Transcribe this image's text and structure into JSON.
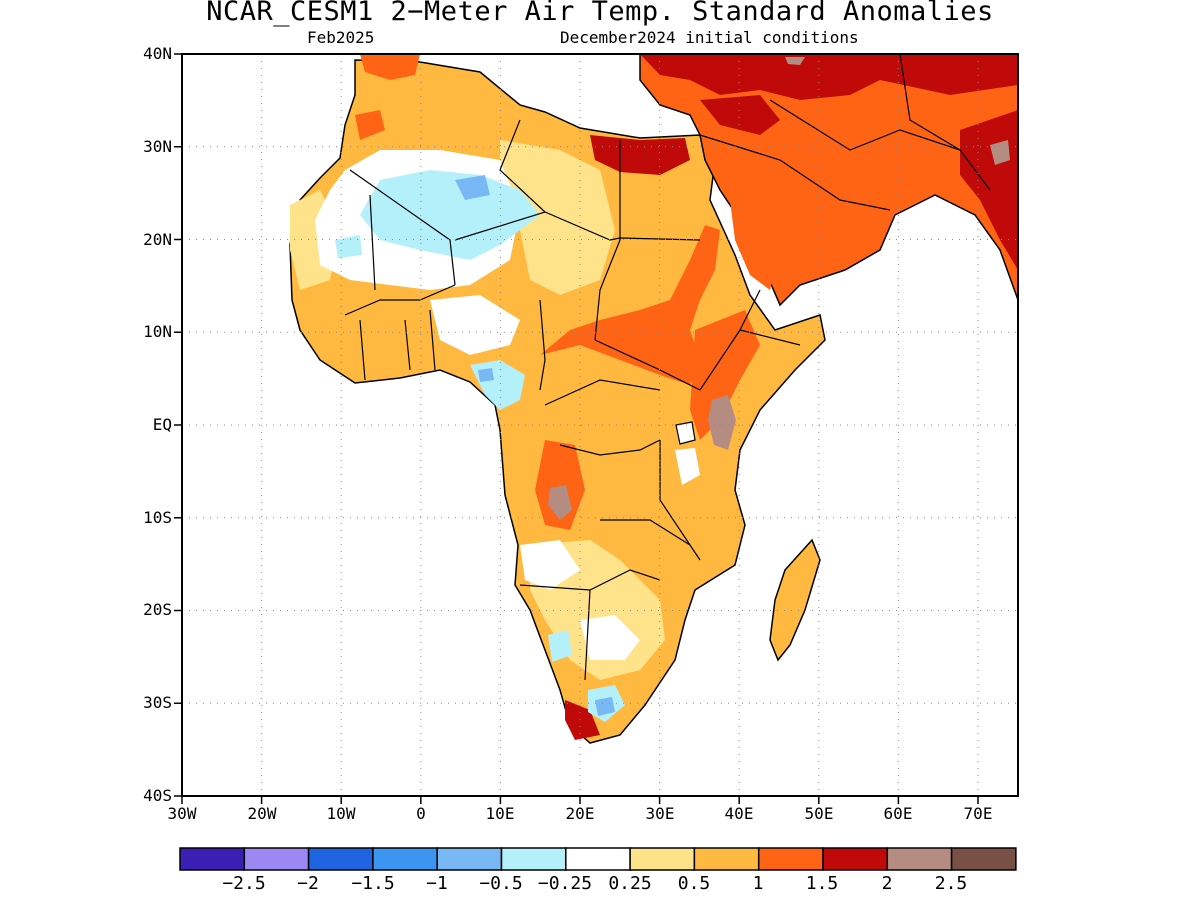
{
  "title": "NCAR_CESM1 2−Meter Air Temp. Standard Anomalies",
  "subtitle_left": "Feb2025",
  "subtitle_right": "December2024 initial conditions",
  "lat_labels": [
    "40N",
    "30N",
    "20N",
    "10N",
    "EQ",
    "10S",
    "20S",
    "30S",
    "40S"
  ],
  "lon_labels": [
    "30W",
    "20W",
    "10W",
    "0",
    "10E",
    "20E",
    "30E",
    "40E",
    "50E",
    "60E",
    "70E"
  ],
  "map_extent": {
    "lon": [
      -30,
      75
    ],
    "lat": [
      -40,
      40
    ]
  },
  "colorbar": {
    "colors": [
      "#3b1fb5",
      "#9c88f2",
      "#1e64e0",
      "#3c95f0",
      "#78b8f5",
      "#b4f0fa",
      "#ffffff",
      "#ffe38a",
      "#ffb940",
      "#ff6414",
      "#c00a0a",
      "#b48c82",
      "#785046"
    ],
    "labels": [
      "−2.5",
      "−2",
      "−1.5",
      "−1",
      "−0.5",
      "−0.25",
      "0.25",
      "0.5",
      "1",
      "1.5",
      "2",
      "2.5"
    ]
  }
}
